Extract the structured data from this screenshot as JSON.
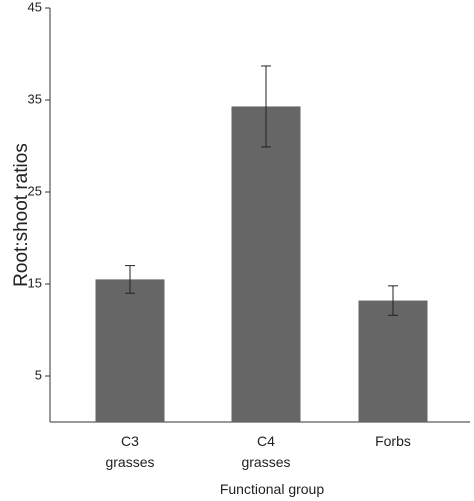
{
  "chart_data": {
    "type": "bar",
    "y_label": "Root:shoot ratios",
    "x_label": "Functional group",
    "categories": [
      "C3 grasses",
      "C4 grasses",
      "Forbs"
    ],
    "values": [
      15.5,
      34.3,
      13.2
    ],
    "errors": [
      1.5,
      4.4,
      1.6
    ],
    "color": "#666666",
    "ylim": [
      0,
      45
    ],
    "yticks": [
      5,
      15,
      25,
      35,
      45
    ],
    "grid": false
  }
}
